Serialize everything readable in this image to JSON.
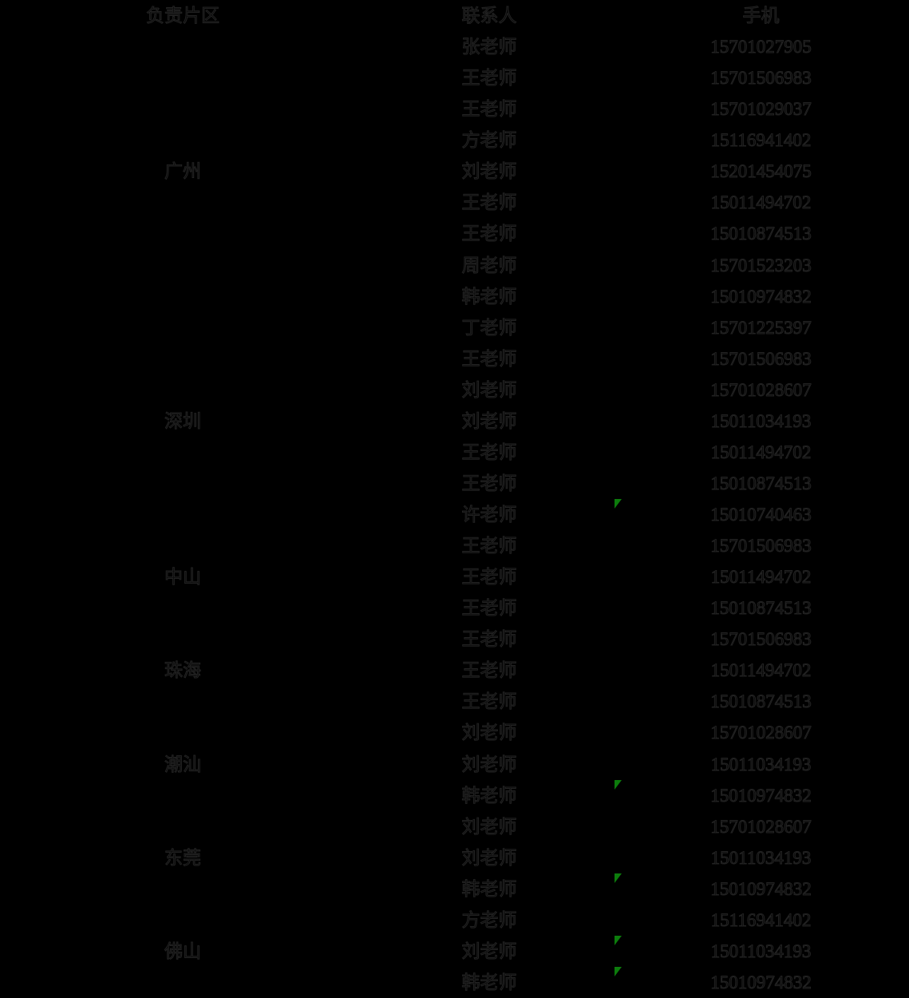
{
  "colors": {
    "background": "#000000",
    "text_fill": "#0a0a0a",
    "text_edge": "#222222",
    "error_marker_green": "#0c7c0c"
  },
  "table": {
    "columns": [
      "负责片区",
      "联系人",
      "手机"
    ],
    "rows": [
      {
        "region": "",
        "contact": "张老师",
        "phone": "15701027905",
        "marker": false
      },
      {
        "region": "",
        "contact": "王老师",
        "phone": "15701506983",
        "marker": false
      },
      {
        "region": "",
        "contact": "王老师",
        "phone": "15701029037",
        "marker": false
      },
      {
        "region": "",
        "contact": "方老师",
        "phone": "15116941402",
        "marker": false
      },
      {
        "region": "广州",
        "contact": "刘老师",
        "phone": "15201454075",
        "marker": false
      },
      {
        "region": "",
        "contact": "王老师",
        "phone": "15011494702",
        "marker": false
      },
      {
        "region": "",
        "contact": "王老师",
        "phone": "15010874513",
        "marker": false
      },
      {
        "region": "",
        "contact": "周老师",
        "phone": "15701523203",
        "marker": false
      },
      {
        "region": "",
        "contact": "韩老师",
        "phone": "15010974832",
        "marker": false
      },
      {
        "region": "",
        "contact": "丁老师",
        "phone": "15701225397",
        "marker": false
      },
      {
        "region": "",
        "contact": "王老师",
        "phone": "15701506983",
        "marker": false
      },
      {
        "region": "",
        "contact": "刘老师",
        "phone": "15701028607",
        "marker": false
      },
      {
        "region": "深圳",
        "contact": "刘老师",
        "phone": "15011034193",
        "marker": false
      },
      {
        "region": "",
        "contact": "王老师",
        "phone": "15011494702",
        "marker": false
      },
      {
        "region": "",
        "contact": "王老师",
        "phone": "15010874513",
        "marker": false
      },
      {
        "region": "",
        "contact": "许老师",
        "phone": "15010740463",
        "marker": true
      },
      {
        "region": "",
        "contact": "王老师",
        "phone": "15701506983",
        "marker": false
      },
      {
        "region": "中山",
        "contact": "王老师",
        "phone": "15011494702",
        "marker": false
      },
      {
        "region": "",
        "contact": "王老师",
        "phone": "15010874513",
        "marker": false
      },
      {
        "region": "",
        "contact": "王老师",
        "phone": "15701506983",
        "marker": false
      },
      {
        "region": "珠海",
        "contact": "王老师",
        "phone": "15011494702",
        "marker": false
      },
      {
        "region": "",
        "contact": "王老师",
        "phone": "15010874513",
        "marker": false
      },
      {
        "region": "",
        "contact": "刘老师",
        "phone": "15701028607",
        "marker": false
      },
      {
        "region": "潮汕",
        "contact": "刘老师",
        "phone": "15011034193",
        "marker": false
      },
      {
        "region": "",
        "contact": "韩老师",
        "phone": "15010974832",
        "marker": true
      },
      {
        "region": "",
        "contact": "刘老师",
        "phone": "15701028607",
        "marker": false
      },
      {
        "region": "东莞",
        "contact": "刘老师",
        "phone": "15011034193",
        "marker": false
      },
      {
        "region": "",
        "contact": "韩老师",
        "phone": "15010974832",
        "marker": true
      },
      {
        "region": "",
        "contact": "方老师",
        "phone": "15116941402",
        "marker": false
      },
      {
        "region": "佛山",
        "contact": "刘老师",
        "phone": "15011034193",
        "marker": true
      },
      {
        "region": "",
        "contact": "韩老师",
        "phone": "15010974832",
        "marker": true
      }
    ]
  }
}
